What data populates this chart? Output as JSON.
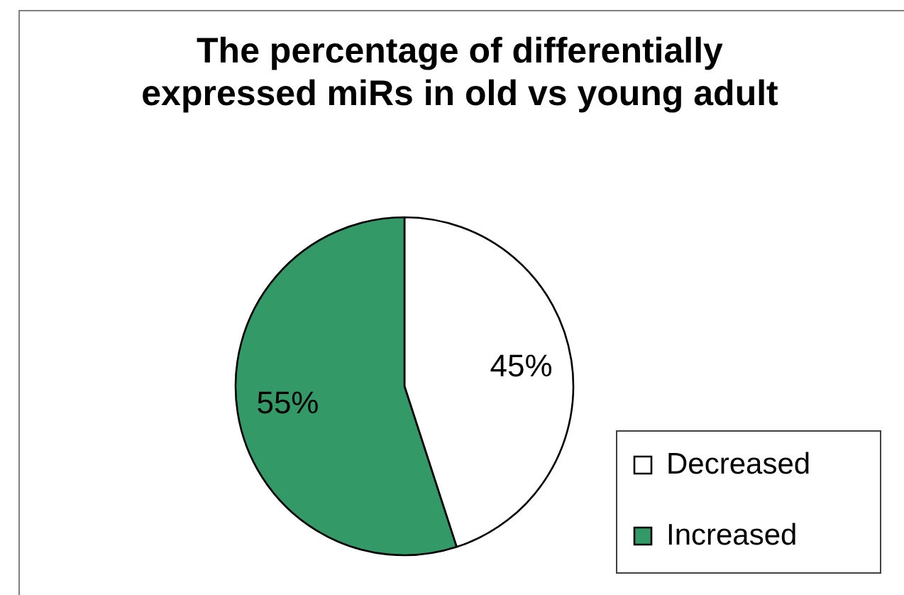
{
  "chart_data": {
    "type": "pie",
    "title": "The percentage of differentially expressed miRs in old vs young adult",
    "categories": [
      "Decreased",
      "Increased"
    ],
    "values": [
      45,
      55
    ],
    "colors": [
      "#ffffff",
      "#339966"
    ],
    "value_labels": [
      "45%",
      "55%"
    ],
    "legend": "bottom right"
  }
}
